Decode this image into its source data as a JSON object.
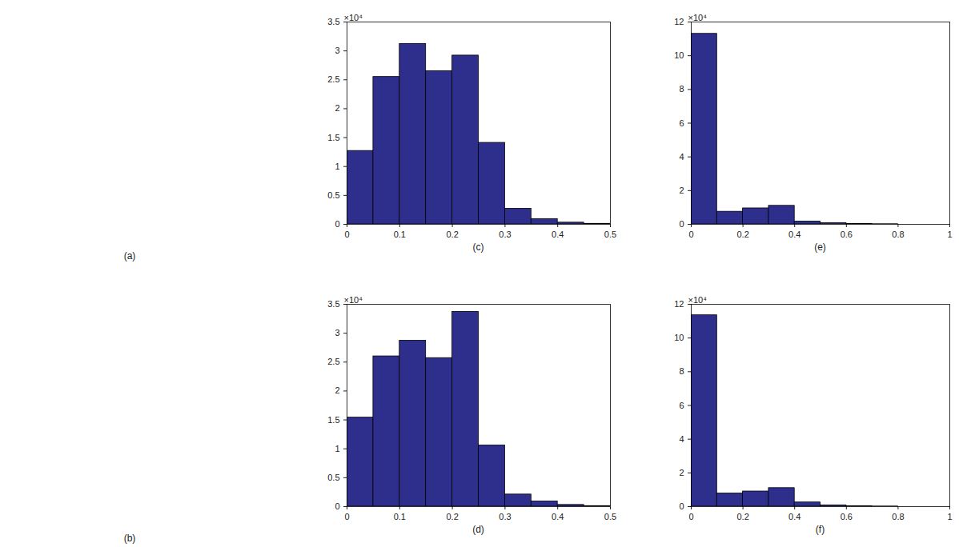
{
  "panels": [
    {
      "label": "(a)"
    },
    {
      "label": "(b)"
    }
  ],
  "chart_data": [
    {
      "type": "histogram",
      "title": "(c)",
      "annotations": [
        "×10⁴"
      ],
      "bins": [
        0,
        0.05,
        0.1,
        0.15,
        0.2,
        0.25,
        0.3,
        0.35,
        0.4,
        0.45,
        0.5
      ],
      "values": [
        1.27,
        2.55,
        3.12,
        2.65,
        2.92,
        1.41,
        0.27,
        0.09,
        0.03,
        0.01
      ],
      "color": "#2e2e8c",
      "xlim": [
        0,
        0.5
      ],
      "xticks": [
        0,
        0.1,
        0.2,
        0.3,
        0.4,
        0.5
      ],
      "ylim": [
        0,
        3.5
      ],
      "yticks": [
        0,
        0.5,
        1,
        1.5,
        2,
        2.5,
        3,
        3.5
      ],
      "grid": false
    },
    {
      "type": "histogram",
      "title": "(d)",
      "annotations": [
        "×10⁴"
      ],
      "bins": [
        0,
        0.05,
        0.1,
        0.15,
        0.2,
        0.25,
        0.3,
        0.35,
        0.4,
        0.45,
        0.5
      ],
      "values": [
        1.54,
        2.6,
        2.87,
        2.57,
        3.37,
        1.06,
        0.21,
        0.09,
        0.03,
        0.01
      ],
      "color": "#2e2e8c",
      "xlim": [
        0,
        0.5
      ],
      "xticks": [
        0,
        0.1,
        0.2,
        0.3,
        0.4,
        0.5
      ],
      "ylim": [
        0,
        3.5
      ],
      "yticks": [
        0,
        0.5,
        1,
        1.5,
        2,
        2.5,
        3,
        3.5
      ],
      "grid": false
    },
    {
      "type": "histogram",
      "title": "(e)",
      "annotations": [
        "×10⁴"
      ],
      "bins": [
        0,
        0.1,
        0.2,
        0.3,
        0.4,
        0.5,
        0.6,
        0.7,
        0.8,
        0.9,
        1
      ],
      "values": [
        11.3,
        0.75,
        0.95,
        1.1,
        0.17,
        0.07,
        0.02,
        0.01,
        0,
        0
      ],
      "color": "#2e2e8c",
      "xlim": [
        0,
        1
      ],
      "xticks": [
        0,
        0.2,
        0.4,
        0.6,
        0.8,
        1
      ],
      "ylim": [
        0,
        12
      ],
      "yticks": [
        0,
        2,
        4,
        6,
        8,
        10,
        12
      ],
      "grid": false
    },
    {
      "type": "histogram",
      "title": "(f)",
      "annotations": [
        "×10⁴"
      ],
      "bins": [
        0,
        0.1,
        0.2,
        0.3,
        0.4,
        0.5,
        0.6,
        0.7,
        0.8,
        0.9,
        1
      ],
      "values": [
        11.35,
        0.78,
        0.9,
        1.1,
        0.25,
        0.08,
        0.03,
        0.01,
        0,
        0
      ],
      "color": "#2e2e8c",
      "xlim": [
        0,
        1
      ],
      "xticks": [
        0,
        0.2,
        0.4,
        0.6,
        0.8,
        1
      ],
      "ylim": [
        0,
        12
      ],
      "yticks": [
        0,
        2,
        4,
        6,
        8,
        10,
        12
      ],
      "grid": false
    }
  ]
}
